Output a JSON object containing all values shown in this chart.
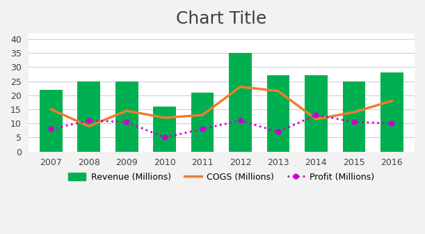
{
  "title": "Chart Title",
  "years": [
    2007,
    2008,
    2009,
    2010,
    2011,
    2012,
    2013,
    2014,
    2015,
    2016
  ],
  "revenue": [
    22,
    25,
    25,
    16,
    21,
    35,
    27,
    27,
    25,
    28
  ],
  "cogs": [
    15,
    9,
    14.5,
    12,
    13,
    23,
    21.5,
    11.5,
    14,
    18
  ],
  "profit": [
    8,
    11,
    10.5,
    5,
    8,
    11,
    7,
    13,
    10.5,
    10
  ],
  "bar_color": "#00b050",
  "cogs_color": "#ed7d31",
  "profit_color": "#cc00cc",
  "background_color": "#f2f2f2",
  "plot_bg_color": "#ffffff",
  "ylim": [
    0,
    42
  ],
  "yticks": [
    0,
    5,
    10,
    15,
    20,
    25,
    30,
    35,
    40
  ],
  "title_fontsize": 18,
  "legend_labels": [
    "Revenue (Millions)",
    "COGS (Millions)",
    "Profit (Millions)"
  ]
}
